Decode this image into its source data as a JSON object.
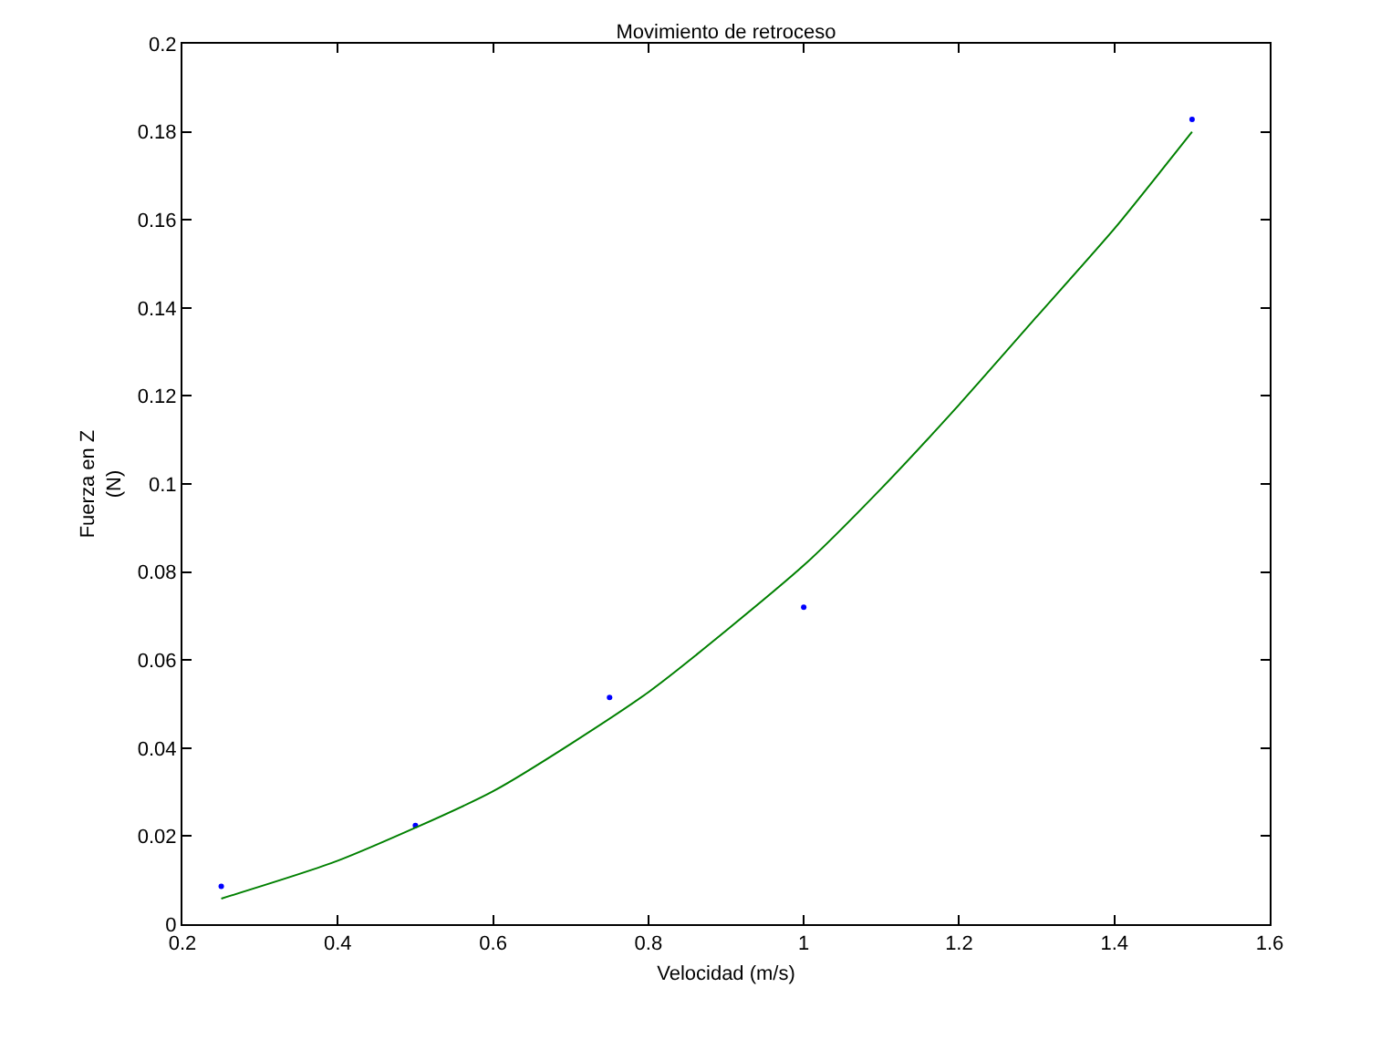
{
  "chart_data": {
    "type": "scatter",
    "title": "Movimiento de retroceso",
    "xlabel": "Velocidad (m/s)",
    "ylabel": "Fuerza en Z\n(N)",
    "x": [
      0.25,
      0.5,
      0.75,
      1.0,
      1.5
    ],
    "series": [
      {
        "color": "#0000ff",
        "marker": "circle",
        "values": [
          0.0086,
          0.0224,
          0.0515,
          0.072,
          0.1828
        ]
      },
      {
        "type": "line",
        "color": "#008000",
        "marker": "none",
        "x": [
          0.25,
          0.4,
          0.6,
          0.8,
          1.0,
          1.1,
          1.2,
          1.3,
          1.4,
          1.5
        ],
        "values": [
          0.0058,
          0.0144,
          0.0302,
          0.0527,
          0.0815,
          0.099,
          0.118,
          0.138,
          0.158,
          0.18
        ]
      }
    ],
    "xlim": [
      0.2,
      1.6
    ],
    "xticks": [
      {
        "value": 0.2,
        "label": "0.2"
      },
      {
        "value": 0.4,
        "label": "0.4"
      },
      {
        "value": 0.6,
        "label": "0.6"
      },
      {
        "value": 0.8,
        "label": "0.8"
      },
      1,
      {
        "value": 1.2,
        "label": "1.2"
      },
      {
        "value": 1.4,
        "label": "1.4"
      },
      {
        "value": 1.6,
        "label": "1.6"
      }
    ],
    "ylim": [
      0,
      0.2
    ],
    "yticks": [
      0,
      0.02,
      0.04,
      0.06,
      0.08,
      0.1,
      0.12,
      0.14,
      0.16,
      0.18,
      0.2
    ],
    "grid": false
  }
}
